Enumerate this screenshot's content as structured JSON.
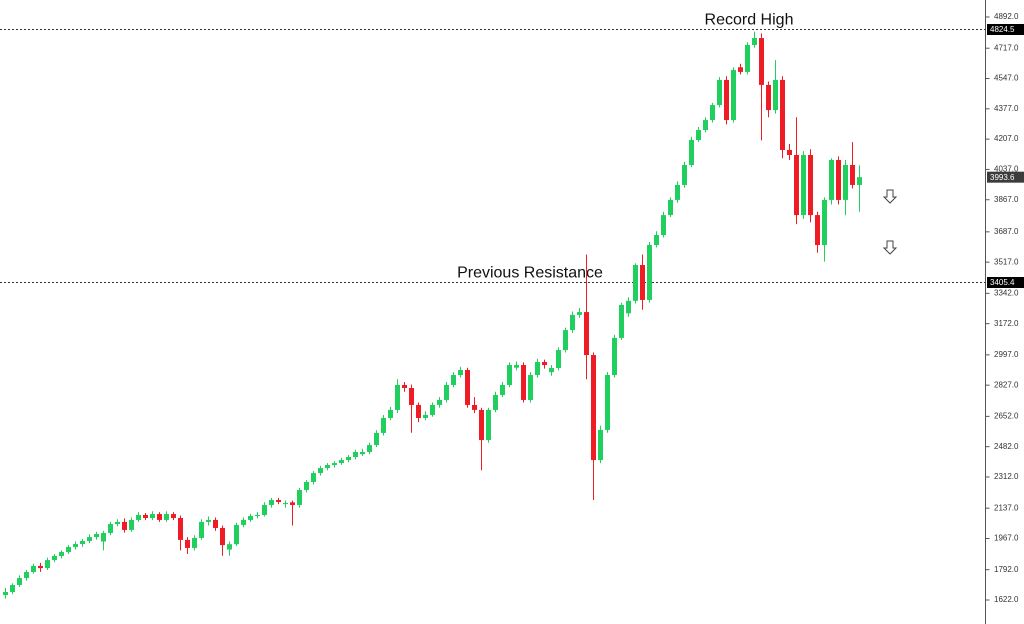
{
  "chart_data": {
    "type": "candlestick",
    "colors": {
      "up": "#20cf5e",
      "down": "#ee1c25"
    },
    "ylim": [
      1622,
      4892
    ],
    "yticks": [
      {
        "value": 4892,
        "label": "4892.0"
      },
      {
        "value": 4717,
        "label": "4717.0"
      },
      {
        "value": 4547,
        "label": "4547.0"
      },
      {
        "value": 4377,
        "label": "4377.0"
      },
      {
        "value": 4207,
        "label": "4207.0"
      },
      {
        "value": 4037,
        "label": "4037.0"
      },
      {
        "value": 3867,
        "label": "3867.0"
      },
      {
        "value": 3687,
        "label": "3687.0"
      },
      {
        "value": 3517,
        "label": "3517.0"
      },
      {
        "value": 3342,
        "label": "3342.0"
      },
      {
        "value": 3172,
        "label": "3172.0"
      },
      {
        "value": 2997,
        "label": "2997.0"
      },
      {
        "value": 2827,
        "label": "2827.0"
      },
      {
        "value": 2652,
        "label": "2652.0"
      },
      {
        "value": 2482,
        "label": "2482.0"
      },
      {
        "value": 2312,
        "label": "2312.0"
      },
      {
        "value": 2137,
        "label": "2137.0"
      },
      {
        "value": 1967,
        "label": "1967.0"
      },
      {
        "value": 1792,
        "label": "1792.0"
      },
      {
        "value": 1622,
        "label": "1622.0"
      }
    ],
    "levels": [
      {
        "value": 4824.5,
        "annotation": "Record High"
      },
      {
        "value": 3405.4,
        "annotation": "Previous Resistance"
      }
    ],
    "last_price": 3993.6,
    "ohlc": [
      [
        1650,
        1690,
        1630,
        1667
      ],
      [
        1667,
        1715,
        1655,
        1706
      ],
      [
        1706,
        1760,
        1695,
        1745
      ],
      [
        1745,
        1790,
        1730,
        1779
      ],
      [
        1779,
        1825,
        1770,
        1813
      ],
      [
        1813,
        1830,
        1780,
        1801
      ],
      [
        1801,
        1860,
        1790,
        1846
      ],
      [
        1846,
        1880,
        1835,
        1869
      ],
      [
        1869,
        1900,
        1855,
        1891
      ],
      [
        1891,
        1930,
        1880,
        1919
      ],
      [
        1919,
        1950,
        1905,
        1936
      ],
      [
        1936,
        1965,
        1920,
        1953
      ],
      [
        1953,
        1990,
        1940,
        1975
      ],
      [
        1975,
        2005,
        1960,
        1992
      ],
      [
        1950,
        2010,
        1900,
        1998
      ],
      [
        1998,
        2060,
        1985,
        2048
      ],
      [
        2048,
        2075,
        2035,
        2060
      ],
      [
        2060,
        2080,
        2000,
        2015
      ],
      [
        2015,
        2085,
        2005,
        2071
      ],
      [
        2071,
        2115,
        2060,
        2099
      ],
      [
        2099,
        2110,
        2070,
        2082
      ],
      [
        2082,
        2120,
        2070,
        2104
      ],
      [
        2104,
        2115,
        2060,
        2071
      ],
      [
        2071,
        2120,
        2060,
        2104
      ],
      [
        2104,
        2115,
        2070,
        2082
      ],
      [
        2082,
        2095,
        1900,
        1959
      ],
      [
        1959,
        1975,
        1880,
        1914
      ],
      [
        1914,
        1985,
        1900,
        1970
      ],
      [
        1970,
        2075,
        1960,
        2060
      ],
      [
        2060,
        2090,
        2040,
        2071
      ],
      [
        2071,
        2085,
        2010,
        2026
      ],
      [
        2026,
        2040,
        1870,
        1930
      ],
      [
        1905,
        1950,
        1870,
        1935
      ],
      [
        1935,
        2055,
        1925,
        2043
      ],
      [
        2043,
        2085,
        2030,
        2071
      ],
      [
        2071,
        2105,
        2060,
        2093
      ],
      [
        2093,
        2115,
        2080,
        2099
      ],
      [
        2099,
        2170,
        2090,
        2155
      ],
      [
        2155,
        2195,
        2140,
        2183
      ],
      [
        2183,
        2195,
        2160,
        2172
      ],
      [
        2160,
        2180,
        2140,
        2166
      ],
      [
        2170,
        2180,
        2040,
        2155
      ],
      [
        2155,
        2250,
        2140,
        2239
      ],
      [
        2239,
        2295,
        2225,
        2284
      ],
      [
        2284,
        2345,
        2270,
        2334
      ],
      [
        2334,
        2375,
        2320,
        2362
      ],
      [
        2362,
        2390,
        2350,
        2379
      ],
      [
        2379,
        2400,
        2365,
        2390
      ],
      [
        2390,
        2420,
        2380,
        2407
      ],
      [
        2407,
        2435,
        2395,
        2424
      ],
      [
        2424,
        2465,
        2410,
        2452
      ],
      [
        2440,
        2470,
        2430,
        2452
      ],
      [
        2452,
        2505,
        2440,
        2491
      ],
      [
        2491,
        2575,
        2480,
        2559
      ],
      [
        2559,
        2660,
        2545,
        2643
      ],
      [
        2643,
        2705,
        2630,
        2688
      ],
      [
        2688,
        2860,
        2670,
        2828
      ],
      [
        2828,
        2845,
        2790,
        2811
      ],
      [
        2811,
        2830,
        2560,
        2716
      ],
      [
        2716,
        2730,
        2620,
        2643
      ],
      [
        2643,
        2680,
        2630,
        2660
      ],
      [
        2660,
        2730,
        2650,
        2716
      ],
      [
        2716,
        2760,
        2700,
        2744
      ],
      [
        2744,
        2845,
        2730,
        2828
      ],
      [
        2828,
        2900,
        2815,
        2884
      ],
      [
        2884,
        2930,
        2870,
        2912
      ],
      [
        2912,
        2925,
        2700,
        2716
      ],
      [
        2716,
        2760,
        2670,
        2688
      ],
      [
        2688,
        2700,
        2350,
        2519
      ],
      [
        2519,
        2700,
        2505,
        2688
      ],
      [
        2688,
        2790,
        2675,
        2772
      ],
      [
        2772,
        2845,
        2760,
        2828
      ],
      [
        2828,
        2955,
        2815,
        2940
      ],
      [
        2925,
        2960,
        2910,
        2940
      ],
      [
        2940,
        2955,
        2730,
        2744
      ],
      [
        2744,
        2900,
        2730,
        2884
      ],
      [
        2884,
        2975,
        2870,
        2957
      ],
      [
        2957,
        2970,
        2920,
        2940
      ],
      [
        2900,
        2940,
        2880,
        2923
      ],
      [
        2923,
        3040,
        2910,
        3024
      ],
      [
        3024,
        3150,
        3010,
        3136
      ],
      [
        3136,
        3240,
        3120,
        3221
      ],
      [
        3221,
        3260,
        3205,
        3237
      ],
      [
        3237,
        3560,
        2860,
        2996
      ],
      [
        2996,
        3010,
        2183,
        2407
      ],
      [
        2407,
        2600,
        2390,
        2576
      ],
      [
        2576,
        2900,
        2560,
        2884
      ],
      [
        2884,
        3110,
        2870,
        3092
      ],
      [
        3092,
        3290,
        3080,
        3277
      ],
      [
        3230,
        3320,
        3210,
        3300
      ],
      [
        3300,
        3510,
        3285,
        3501
      ],
      [
        3501,
        3560,
        3250,
        3305
      ],
      [
        3305,
        3630,
        3290,
        3613
      ],
      [
        3613,
        3690,
        3600,
        3669
      ],
      [
        3669,
        3800,
        3655,
        3781
      ],
      [
        3781,
        3880,
        3770,
        3866
      ],
      [
        3866,
        3970,
        3850,
        3950
      ],
      [
        3950,
        4080,
        3935,
        4062
      ],
      [
        4062,
        4220,
        4050,
        4202
      ],
      [
        4202,
        4275,
        4190,
        4258
      ],
      [
        4258,
        4330,
        4245,
        4314
      ],
      [
        4314,
        4410,
        4300,
        4398
      ],
      [
        4398,
        4555,
        4385,
        4539
      ],
      [
        4539,
        4560,
        4290,
        4314
      ],
      [
        4314,
        4610,
        4300,
        4595
      ],
      [
        4610,
        4630,
        4570,
        4584
      ],
      [
        4584,
        4750,
        4570,
        4735
      ],
      [
        4735,
        4810,
        4720,
        4774
      ],
      [
        4774,
        4800,
        4200,
        4511
      ],
      [
        4511,
        4530,
        4330,
        4370
      ],
      [
        4370,
        4650,
        4350,
        4539
      ],
      [
        4539,
        4560,
        4100,
        4146
      ],
      [
        4146,
        4180,
        4090,
        4118
      ],
      [
        4118,
        4330,
        3730,
        3781
      ],
      [
        3781,
        4140,
        3760,
        4118
      ],
      [
        4118,
        4150,
        3740,
        3781
      ],
      [
        3781,
        3800,
        3570,
        3613
      ],
      [
        3613,
        3880,
        3520,
        3866
      ],
      [
        3866,
        4100,
        3840,
        4090
      ],
      [
        4090,
        4110,
        3840,
        3866
      ],
      [
        3866,
        4090,
        3780,
        4062
      ],
      [
        4062,
        4190,
        3930,
        3950
      ],
      [
        3950,
        4060,
        3800,
        3993.6
      ]
    ]
  }
}
